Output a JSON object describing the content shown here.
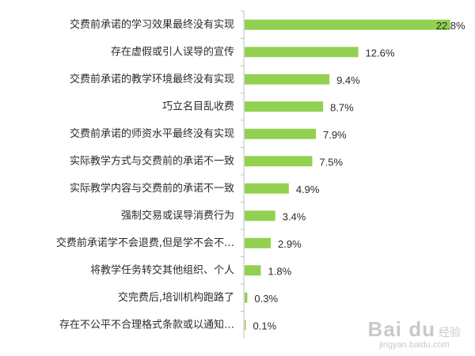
{
  "chart_data": {
    "type": "bar",
    "orientation": "horizontal",
    "categories": [
      "交费前承诺的学习效果最终没有实现",
      "存在虚假或引人误导的宣传",
      "交费前承诺的教学环境最终没有实现",
      "巧立名目乱收费",
      "交费前承诺的师资水平最终没有实现",
      "实际教学方式与交费前的承诺不一致",
      "实际教学内容与交费前的承诺不一致",
      "强制交易或误导消费行为",
      "交费前承诺学不会退费,但是学不会不…",
      "将教学任务转交其他组织、个人",
      "交完费后,培训机构跑路了",
      "存在不公平不合理格式条款或以通知…"
    ],
    "values": [
      22.8,
      12.6,
      9.4,
      8.7,
      7.9,
      7.5,
      4.9,
      3.4,
      2.9,
      1.8,
      0.3,
      0.1
    ],
    "value_labels": [
      "22.8%",
      "12.6%",
      "9.4%",
      "8.7%",
      "7.9%",
      "7.5%",
      "4.9%",
      "3.4%",
      "2.9%",
      "1.8%",
      "0.3%",
      "0.1%"
    ],
    "title": "",
    "xlabel": "",
    "ylabel": "",
    "xlim": [
      0,
      23
    ],
    "grid": false,
    "bar_color": "#92d050",
    "axis_color": "#bfbfbf"
  },
  "watermark": {
    "logo": "Bai du",
    "sub": "经验",
    "url": "jingyan.baidu.com"
  }
}
